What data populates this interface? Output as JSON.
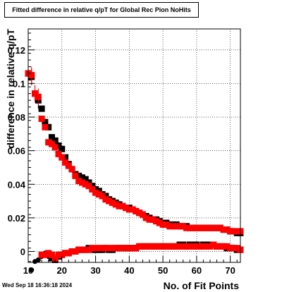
{
  "chart_data": {
    "type": "scatter",
    "title": "Fitted difference in relative q/pT for Global Rec Pion NoHits",
    "xlabel": "No. of Fit Points",
    "ylabel": "difference in relative q/pT",
    "xlim": [
      10,
      73
    ],
    "ylim": [
      -0.0065,
      0.1325
    ],
    "x_ticks": [
      10,
      20,
      30,
      40,
      50,
      60,
      70
    ],
    "y_ticks": [
      0,
      0.02,
      0.04,
      0.06,
      0.08,
      0.1,
      0.12
    ],
    "y_tick_labels": [
      "0",
      "0.02",
      "0.04",
      "0.06",
      "0.08",
      "0.1",
      "0.12"
    ],
    "grid": true,
    "series": [
      {
        "color": "#000000",
        "role": "upper",
        "x": [
          10,
          11,
          12,
          13,
          14,
          15,
          16,
          17,
          18,
          19,
          20,
          21,
          22,
          23,
          24,
          25,
          26,
          27,
          28,
          29,
          30,
          31,
          32,
          33,
          34,
          35,
          36,
          37,
          38,
          39,
          40,
          41,
          42,
          43,
          44,
          45,
          46,
          47,
          48,
          49,
          50,
          51,
          52,
          53,
          54,
          55,
          56,
          57,
          58,
          59,
          60,
          61,
          62,
          63,
          64,
          65,
          66,
          67,
          68,
          69,
          70,
          71,
          72,
          73
        ],
        "y": [
          0.106,
          0.104,
          0.094,
          0.09,
          0.085,
          0.077,
          0.074,
          0.068,
          0.066,
          0.063,
          0.061,
          0.056,
          0.052,
          0.049,
          0.046,
          0.045,
          0.044,
          0.043,
          0.041,
          0.039,
          0.037,
          0.036,
          0.034,
          0.033,
          0.031,
          0.03,
          0.029,
          0.028,
          0.027,
          0.026,
          0.026,
          0.025,
          0.024,
          0.023,
          0.022,
          0.021,
          0.02,
          0.019,
          0.019,
          0.018,
          0.017,
          0.017,
          0.016,
          0.016,
          0.016,
          0.015,
          0.015,
          0.015,
          0.014,
          0.014,
          0.014,
          0.014,
          0.014,
          0.014,
          0.014,
          0.014,
          0.014,
          0.014,
          0.013,
          0.013,
          0.012,
          0.012,
          0.011,
          0.011
        ]
      },
      {
        "color": "#ff0000",
        "role": "upper",
        "x": [
          10,
          11,
          12,
          13,
          14,
          15,
          16,
          17,
          18,
          19,
          20,
          21,
          22,
          23,
          24,
          25,
          26,
          27,
          28,
          29,
          30,
          31,
          32,
          33,
          34,
          35,
          36,
          37,
          38,
          39,
          40,
          41,
          42,
          43,
          44,
          45,
          46,
          47,
          48,
          49,
          50,
          51,
          52,
          53,
          54,
          55,
          56,
          57,
          58,
          59,
          60,
          61,
          62,
          63,
          64,
          65,
          66,
          67,
          68,
          69,
          70,
          71,
          72,
          73
        ],
        "y": [
          0.106,
          0.105,
          0.094,
          0.092,
          0.079,
          0.074,
          0.065,
          0.064,
          0.062,
          0.058,
          0.056,
          0.053,
          0.051,
          0.049,
          0.045,
          0.042,
          0.041,
          0.04,
          0.039,
          0.037,
          0.035,
          0.034,
          0.033,
          0.031,
          0.03,
          0.029,
          0.028,
          0.027,
          0.027,
          0.026,
          0.025,
          0.025,
          0.024,
          0.023,
          0.022,
          0.02,
          0.019,
          0.019,
          0.018,
          0.017,
          0.016,
          0.016,
          0.015,
          0.015,
          0.015,
          0.015,
          0.015,
          0.014,
          0.014,
          0.014,
          0.014,
          0.014,
          0.014,
          0.014,
          0.014,
          0.014,
          0.014,
          0.014,
          0.013,
          0.013,
          0.012,
          0.012,
          0.012,
          0.012
        ]
      },
      {
        "color": "#000000",
        "role": "lower",
        "x": [
          11,
          12,
          13,
          14,
          15,
          16,
          17,
          18,
          19,
          20,
          21,
          22,
          23,
          24,
          25,
          26,
          27,
          28,
          29,
          30,
          31,
          32,
          33,
          34,
          35,
          36,
          37,
          38,
          39,
          40,
          41,
          42,
          43,
          44,
          45,
          46,
          47,
          48,
          49,
          50,
          51,
          52,
          53,
          54,
          55,
          56,
          57,
          58,
          59,
          60,
          61,
          62,
          63,
          64,
          65,
          66,
          67,
          68,
          69,
          70,
          71,
          72,
          73
        ],
        "y": [
          -0.011,
          -0.006,
          -0.005,
          -0.003,
          -0.001,
          -0.003,
          -0.004,
          -0.005,
          -0.003,
          -0.002,
          -0.001,
          -0.001,
          0,
          0,
          0.001,
          0.001,
          0.001,
          0.002,
          0.001,
          0.001,
          0.001,
          0.001,
          0.002,
          0.001,
          0.001,
          0.002,
          0.002,
          0.002,
          0.002,
          0.002,
          0.002,
          0.002,
          0.003,
          0.003,
          0.003,
          0.003,
          0.003,
          0.003,
          0.003,
          0.003,
          0.003,
          0.003,
          0.003,
          0.003,
          0.004,
          0.004,
          0.003,
          0.004,
          0.004,
          0.004,
          0.003,
          0.004,
          0.004,
          0.004,
          0.004,
          0.003,
          0.003,
          0.003,
          0.002,
          0.002,
          0.002,
          0.001,
          0.001
        ]
      },
      {
        "color": "#ff0000",
        "role": "lower",
        "x": [
          14,
          15,
          16,
          17,
          18,
          19,
          20,
          21,
          22,
          23,
          24,
          25,
          26,
          27,
          28,
          29,
          30,
          31,
          32,
          33,
          34,
          35,
          36,
          37,
          38,
          39,
          40,
          41,
          42,
          43,
          44,
          45,
          46,
          47,
          48,
          49,
          50,
          51,
          52,
          53,
          54,
          55,
          56,
          57,
          58,
          59,
          60,
          61,
          62,
          63,
          64,
          65,
          66,
          67,
          68,
          69,
          70,
          71,
          72,
          73
        ],
        "y": [
          -0.002,
          -0.002,
          -0.001,
          -0.002,
          -0.004,
          -0.002,
          -0.002,
          -0.001,
          -0.001,
          0,
          0,
          0.001,
          0.001,
          0.001,
          0.001,
          0.002,
          0.002,
          0.002,
          0.002,
          0.002,
          0.002,
          0.002,
          0.002,
          0.002,
          0.002,
          0.002,
          0.002,
          0.002,
          0.002,
          0.003,
          0.003,
          0.003,
          0.003,
          0.003,
          0.003,
          0.003,
          0.003,
          0.003,
          0.003,
          0.003,
          0.003,
          0.003,
          0.003,
          0.003,
          0.003,
          0.003,
          0.003,
          0.003,
          0.003,
          0.003,
          0.003,
          0.004,
          0.003,
          0.003,
          0.003,
          0.003,
          0.002,
          0.002,
          0.002,
          0.001
        ]
      }
    ]
  },
  "footer": {
    "timestamp": "Wed Sep 18 16:36:18 2024"
  }
}
